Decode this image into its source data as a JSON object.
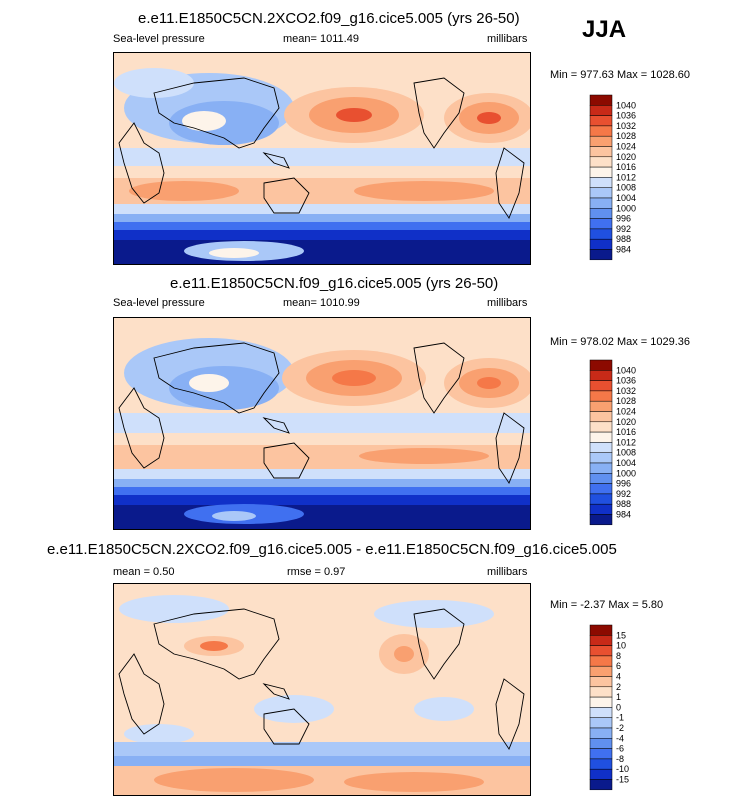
{
  "season": "JJA",
  "units": "millibars",
  "colors": {
    "pressure_scale": [
      "#0a1a8c",
      "#1030c8",
      "#2050e0",
      "#4070f0",
      "#6090f0",
      "#88b0f4",
      "#aac8f8",
      "#cfe0fb",
      "#fdf4ea",
      "#fde0c8",
      "#fcc4a0",
      "#f9a070",
      "#f57848",
      "#e85030",
      "#c82a18",
      "#8c0a00"
    ],
    "diff_scale": [
      "#0a1a8c",
      "#1030c8",
      "#2050e0",
      "#4070f0",
      "#6090f0",
      "#88b0f4",
      "#aac8f8",
      "#cfe0fb",
      "#fdf4ea",
      "#fde0c8",
      "#fcc4a0",
      "#f9a070",
      "#f57848",
      "#e85030",
      "#c82a18",
      "#8c0a00"
    ]
  },
  "chart_data": [
    {
      "type": "heatmap",
      "title": "e.e11.E1850C5CN.2XCO2.f09_g16.cice5.005 (yrs 26-50)",
      "variable": "Sea-level pressure",
      "mean_text": "mean= 1011.49",
      "units": "millibars",
      "range_text": "Min = 977.63 Max = 1028.60",
      "min": 977.63,
      "max": 1028.6,
      "contour_levels": [
        1040,
        1036,
        1032,
        1028,
        1024,
        1020,
        1016,
        1012,
        1008,
        1004,
        1000,
        996,
        992,
        988,
        984
      ]
    },
    {
      "type": "heatmap",
      "title": "e.e11.E1850C5CN.f09_g16.cice5.005 (yrs 26-50)",
      "variable": "Sea-level pressure",
      "mean_text": "mean= 1010.99",
      "units": "millibars",
      "range_text": "Min = 978.02 Max = 1029.36",
      "min": 978.02,
      "max": 1029.36,
      "contour_levels": [
        1040,
        1036,
        1032,
        1028,
        1024,
        1020,
        1016,
        1012,
        1008,
        1004,
        1000,
        996,
        992,
        988,
        984
      ]
    },
    {
      "type": "heatmap",
      "title": "e.e11.E1850C5CN.2XCO2.f09_g16.cice5.005 - e.e11.E1850C5CN.f09_g16.cice5.005",
      "mean_text": "mean =   0.50",
      "rmse_text": "rmse =   0.97",
      "units": "millibars",
      "range_text": "Min =  -2.37 Max =   5.80",
      "min": -2.37,
      "max": 5.8,
      "contour_levels": [
        15,
        10,
        8,
        6,
        4,
        2,
        1,
        0,
        -1,
        -2,
        -4,
        -6,
        -8,
        -10,
        -15
      ]
    }
  ]
}
